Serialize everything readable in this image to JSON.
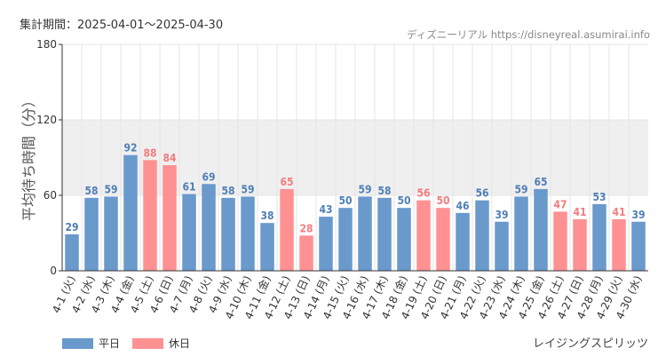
{
  "header": {
    "period": "集計期間：2025-04-01～2025-04-30",
    "source": "ディズニーリアル https://disneyreal.asumirai.info"
  },
  "attraction": "レイジングスピリッツ",
  "legend": [
    {
      "label": "平日",
      "color": "#6a99cc"
    },
    {
      "label": "休日",
      "color": "#ff9193"
    }
  ],
  "colors": {
    "weekday": "#6a99cc",
    "holiday": "#ff9193",
    "weekday_value": "#4f7fb5",
    "holiday_value": "#f47b7e",
    "band": "#efefef",
    "grid": "#e6e6e6"
  },
  "chart_data": {
    "type": "bar",
    "ylabel": "平均待ち時間（分）",
    "ylim": [
      0,
      180
    ],
    "yticks": [
      0,
      60,
      120,
      180
    ],
    "shaded_band": [
      60,
      120
    ],
    "grid": true,
    "legend_position": "bottom-left",
    "categories": [
      "4-1 (火)",
      "4-2 (水)",
      "4-3 (木)",
      "4-4 (金)",
      "4-5 (土)",
      "4-6 (日)",
      "4-7 (月)",
      "4-8 (火)",
      "4-9 (水)",
      "4-10 (木)",
      "4-11 (金)",
      "4-12 (土)",
      "4-13 (日)",
      "4-14 (月)",
      "4-15 (火)",
      "4-16 (水)",
      "4-17 (木)",
      "4-18 (金)",
      "4-19 (土)",
      "4-20 (日)",
      "4-21 (月)",
      "4-22 (火)",
      "4-23 (水)",
      "4-24 (木)",
      "4-25 (金)",
      "4-26 (土)",
      "4-27 (日)",
      "4-28 (月)",
      "4-29 (火)",
      "4-30 (水)"
    ],
    "values": [
      29,
      58,
      59,
      92,
      88,
      84,
      61,
      69,
      58,
      59,
      38,
      65,
      28,
      43,
      50,
      59,
      58,
      50,
      56,
      50,
      46,
      56,
      39,
      59,
      65,
      47,
      41,
      53,
      41,
      39
    ],
    "day_type": [
      "平日",
      "平日",
      "平日",
      "平日",
      "休日",
      "休日",
      "平日",
      "平日",
      "平日",
      "平日",
      "平日",
      "休日",
      "休日",
      "平日",
      "平日",
      "平日",
      "平日",
      "平日",
      "休日",
      "休日",
      "平日",
      "平日",
      "平日",
      "平日",
      "平日",
      "休日",
      "休日",
      "平日",
      "休日",
      "平日"
    ]
  }
}
